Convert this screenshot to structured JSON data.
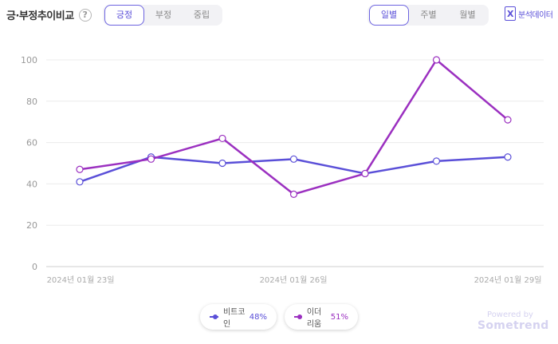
{
  "header": {
    "title": "긍·부정추이비교",
    "help_icon": "question-circle-icon",
    "sentiment_tabs": [
      "긍정",
      "부정",
      "중립"
    ],
    "sentiment_selected": "긍정",
    "period_tabs": [
      "일별",
      "주별",
      "월별"
    ],
    "period_selected": "일별",
    "report_label": "분석데이터",
    "report_icon": "excel-icon"
  },
  "colors": {
    "accent": "#5a4fd8",
    "bitcoin": "#5a4fd8",
    "ethereum": "#9b30c0"
  },
  "chart_data": {
    "type": "line",
    "x": [
      "2024-01-23",
      "2024-01-24",
      "2024-01-25",
      "2024-01-26",
      "2024-01-27",
      "2024-01-28",
      "2024-01-29"
    ],
    "x_tick_labels": [
      "2024년 01월 23일",
      "2024년 01월 26일",
      "2024년 01월 29일"
    ],
    "y_ticks": [
      0,
      20,
      40,
      60,
      80,
      100
    ],
    "ylim": [
      0,
      100
    ],
    "grid": true,
    "series": [
      {
        "name": "비트코인",
        "percent": "48%",
        "color": "#5a4fd8",
        "values": [
          41,
          53,
          50,
          52,
          45,
          51,
          53
        ]
      },
      {
        "name": "이더리움",
        "percent": "51%",
        "color": "#9b30c0",
        "values": [
          47,
          52,
          62,
          35,
          45,
          100,
          71
        ]
      }
    ],
    "legend_placement": "bottom"
  },
  "footer": {
    "powered_by": "Powered by",
    "brand": "Sometrend"
  }
}
